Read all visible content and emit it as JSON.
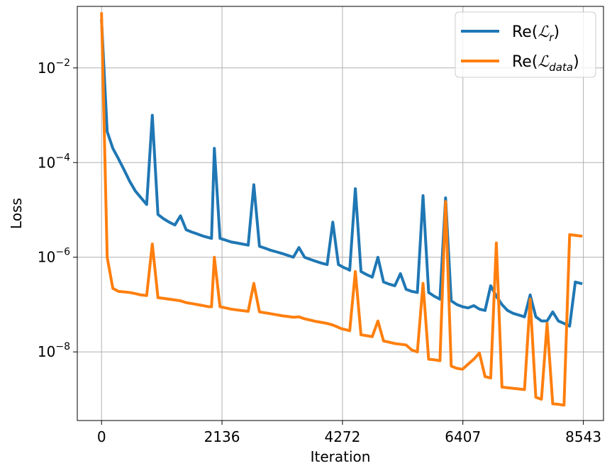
{
  "chart_data": {
    "type": "line",
    "xlabel": "Iteration",
    "ylabel": "Loss",
    "xlim": [
      -430,
      8900
    ],
    "ylim_log10": [
      -9.45,
      -0.7
    ],
    "yscale": "log",
    "grid": true,
    "legend_position": "top-right",
    "x_ticks": [
      0,
      2136,
      4272,
      6407,
      8543
    ],
    "x_tick_labels": [
      "0",
      "2136",
      "4272",
      "6407",
      "8543"
    ],
    "y_ticks_log10": [
      -2,
      -4,
      -6,
      -8
    ],
    "y_tick_base": "10",
    "y_tick_exponents": [
      "−2",
      "−4",
      "−6",
      "−8"
    ],
    "series": [
      {
        "name": "Re(ℒr)",
        "name_main": "Re(",
        "name_sub": "r",
        "color": "#1f77b4",
        "x": [
          0,
          100,
          200,
          300,
          400,
          500,
          600,
          700,
          800,
          900,
          1000,
          1100,
          1200,
          1300,
          1400,
          1500,
          1600,
          1700,
          1800,
          1900,
          1950,
          2000,
          2100,
          2200,
          2300,
          2400,
          2600,
          2700,
          2800,
          2900,
          3000,
          3100,
          3200,
          3300,
          3400,
          3500,
          3600,
          3700,
          3800,
          3900,
          4000,
          4100,
          4200,
          4250,
          4300,
          4350,
          4400,
          4500,
          4600,
          4700,
          4800,
          4900,
          5000,
          5100,
          5200,
          5300,
          5400,
          5500,
          5600,
          5700,
          5800,
          5900,
          6000,
          6100,
          6200,
          6300,
          6400,
          6500,
          6600,
          6700,
          6800,
          6900,
          7000,
          7100,
          7200,
          7300,
          7400,
          7500,
          7600,
          7700,
          7750,
          7800,
          7900,
          8000,
          8100,
          8200,
          8300,
          8400,
          8500
        ],
        "y": [
          0.1,
          0.00045,
          0.0002,
          0.00012,
          7e-05,
          4e-05,
          2.5e-05,
          1.8e-05,
          1.3e-05,
          0.001,
          8e-06,
          6.5e-06,
          5.5e-06,
          4.8e-06,
          7.5e-06,
          3.8e-06,
          3.4e-06,
          3.1e-06,
          2.8e-06,
          2.6e-06,
          2.5e-06,
          0.0002,
          2.5e-06,
          2.3e-06,
          2.1e-06,
          2e-06,
          1.8e-06,
          3.4e-05,
          1.7e-06,
          1.55e-06,
          1.4e-06,
          1.3e-06,
          1.2e-06,
          1.1e-06,
          1e-06,
          1.6e-06,
          1e-06,
          9e-07,
          8.2e-07,
          7.5e-07,
          7e-07,
          5.5e-06,
          7e-07,
          6.5e-07,
          6e-07,
          5.7e-07,
          5.3e-07,
          2.8e-05,
          5e-07,
          4.3e-07,
          3.8e-07,
          1e-06,
          3e-07,
          2.7e-07,
          2.5e-07,
          4.5e-07,
          2.1e-07,
          1.9e-07,
          1.8e-07,
          2e-05,
          1.8e-07,
          1.5e-07,
          1.3e-07,
          1.8e-05,
          1.2e-07,
          1e-07,
          9e-08,
          8.5e-08,
          9.5e-08,
          8e-08,
          7.5e-08,
          2.5e-07,
          1.5e-07,
          1e-07,
          7.5e-08,
          6.5e-08,
          6e-08,
          5.5e-08,
          1.6e-07,
          5.5e-08,
          5e-08,
          4.5e-08,
          4.5e-08,
          7e-08,
          4.5e-08,
          4e-08,
          3.5e-08,
          3e-07,
          2.8e-07
        ]
      },
      {
        "name": "Re(ℒdata)",
        "name_main": "Re(",
        "name_sub": "data",
        "color": "#ff7f0e",
        "x": [
          0,
          100,
          200,
          300,
          400,
          500,
          600,
          700,
          800,
          900,
          1000,
          1100,
          1200,
          1300,
          1400,
          1500,
          1600,
          1700,
          1800,
          1900,
          1950,
          2000,
          2100,
          2200,
          2300,
          2400,
          2600,
          2700,
          2800,
          2900,
          3000,
          3100,
          3200,
          3300,
          3400,
          3500,
          3600,
          3700,
          3800,
          3900,
          4000,
          4100,
          4200,
          4250,
          4300,
          4350,
          4400,
          4500,
          4600,
          4700,
          4800,
          4900,
          5000,
          5100,
          5200,
          5300,
          5400,
          5500,
          5600,
          5700,
          5800,
          5900,
          6000,
          6100,
          6200,
          6300,
          6400,
          6500,
          6600,
          6700,
          6800,
          6900,
          7000,
          7100,
          7200,
          7300,
          7400,
          7500,
          7600,
          7700,
          7750,
          7800,
          7900,
          8000,
          8100,
          8200,
          8300,
          8400,
          8500
        ],
        "y": [
          0.14,
          1e-06,
          2.2e-07,
          1.9e-07,
          1.85e-07,
          1.8e-07,
          1.7e-07,
          1.6e-07,
          1.55e-07,
          1.9e-06,
          1.4e-07,
          1.35e-07,
          1.3e-07,
          1.25e-07,
          1.2e-07,
          1.1e-07,
          1.05e-07,
          1e-07,
          9.5e-08,
          9e-08,
          9e-08,
          1e-06,
          9e-08,
          8.5e-08,
          8e-08,
          7.7e-08,
          7.2e-08,
          2.8e-07,
          7e-08,
          6.7e-08,
          6.4e-08,
          6.1e-08,
          5.8e-08,
          5.6e-08,
          5.4e-08,
          5.5e-08,
          5e-08,
          4.7e-08,
          4.4e-08,
          4.2e-08,
          4e-08,
          3.7e-08,
          3.3e-08,
          3.1e-08,
          3e-08,
          2.9e-08,
          2.8e-08,
          5e-07,
          2.3e-08,
          2.2e-08,
          2.1e-08,
          4.5e-08,
          1.7e-08,
          1.6e-08,
          1.5e-08,
          1.45e-08,
          1.4e-08,
          1.1e-08,
          1e-08,
          2.8e-07,
          7e-09,
          6.8e-09,
          6.5e-09,
          1.5e-05,
          5e-09,
          4.5e-09,
          4.3e-09,
          5.5e-09,
          7e-09,
          9.5e-09,
          3e-09,
          2.8e-09,
          2e-06,
          1.8e-09,
          1.75e-09,
          1.7e-09,
          1.65e-09,
          1.6e-09,
          1.3e-07,
          1.1e-09,
          1.05e-09,
          1e-09,
          4e-08,
          8e-10,
          7.8e-10,
          7.5e-10,
          3e-06,
          2.9e-06,
          2.8e-06
        ]
      }
    ]
  }
}
